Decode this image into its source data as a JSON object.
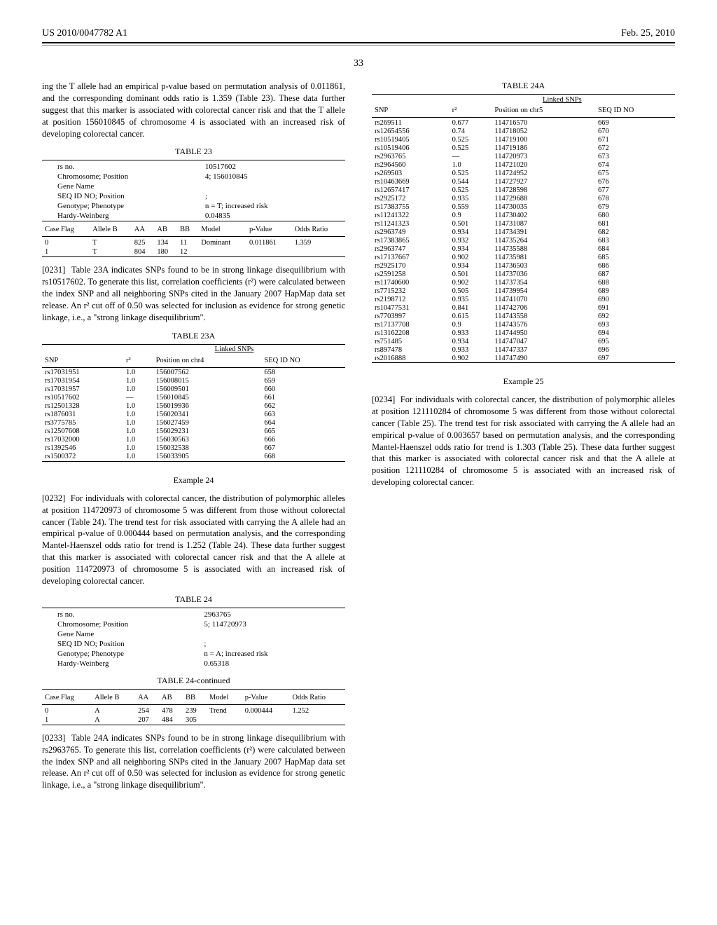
{
  "header": {
    "left": "US 2010/0047782 A1",
    "right": "Feb. 25, 2010"
  },
  "page_number": "33",
  "intro_para": "ing the T allele had an empirical p-value based on permutation analysis of 0.011861, and the corresponding dominant odds ratio is 1.359 (Table 23). These data further suggest that this marker is associated with colorectal cancer risk and that the T allele at position 156010845 of chromosome 4 is associated with an increased risk of developing colorectal cancer.",
  "table23": {
    "caption": "TABLE 23",
    "meta": {
      "labels": [
        "rs no.",
        "Chromosome; Position",
        "Gene Name",
        "SEQ ID NO; Position",
        "Genotype; Phenotype",
        "Hardy-Weinberg"
      ],
      "values": [
        "10517602",
        "4; 156010845",
        "",
        ";",
        "n = T; increased risk",
        "0.04835"
      ]
    },
    "headers": [
      "Case Flag",
      "Allele B",
      "AA",
      "AB",
      "BB",
      "Model",
      "p-Value",
      "Odds Ratio"
    ],
    "rows": [
      [
        "0",
        "T",
        "825",
        "134",
        "11",
        "Dominant",
        "0.011861",
        "1.359"
      ],
      [
        "1",
        "T",
        "804",
        "180",
        "12",
        "",
        "",
        ""
      ]
    ]
  },
  "para231": "Table 23A indicates SNPs found to be in strong linkage disequilibrium with rs10517602. To generate this list, correlation coefficients (r²) were calculated between the index SNP and all neighboring SNPs cited in the January 2007 HapMap data set release. An r² cut off of 0.50 was selected for inclusion as evidence for strong genetic linkage, i.e., a \"strong linkage disequilibrium\".",
  "table23a": {
    "caption": "TABLE 23A",
    "subcaption": "Linked SNPs",
    "headers": [
      "SNP",
      "r²",
      "Position on chr4",
      "SEQ ID NO"
    ],
    "rows": [
      [
        "rs17031951",
        "1.0",
        "156007562",
        "658"
      ],
      [
        "rs17031954",
        "1.0",
        "156008015",
        "659"
      ],
      [
        "rs17031957",
        "1.0",
        "156009501",
        "660"
      ],
      [
        "rs10517602",
        "—",
        "156010845",
        "661"
      ],
      [
        "rs12501328",
        "1.0",
        "156019936",
        "662"
      ],
      [
        "rs1876031",
        "1.0",
        "156020341",
        "663"
      ],
      [
        "rs3775785",
        "1.0",
        "156027459",
        "664"
      ],
      [
        "rs12507608",
        "1.0",
        "156029231",
        "665"
      ],
      [
        "rs17032000",
        "1.0",
        "156030563",
        "666"
      ],
      [
        "rs1392546",
        "1.0",
        "156032538",
        "667"
      ],
      [
        "rs1500372",
        "1.0",
        "156033905",
        "668"
      ]
    ]
  },
  "example24": {
    "title": "Example 24",
    "para": "For individuals with colorectal cancer, the distribution of polymorphic alleles at position 114720973 of chromosome 5 was different from those without colorectal cancer (Table 24). The trend test for risk associated with carrying the A allele had an empirical p-value of 0.000444 based on permutation analysis, and the corresponding Mantel-Haenszel odds ratio for trend is 1.252 (Table 24). These data further suggest that this marker is associated with colorectal cancer risk and that the A allele at position 114720973 of chromosome 5 is associated with an increased risk of developing colorectal cancer."
  },
  "table24": {
    "caption": "TABLE 24",
    "meta": {
      "labels": [
        "rs no.",
        "Chromosome; Position",
        "Gene Name",
        "SEQ ID NO; Position",
        "Genotype; Phenotype",
        "Hardy-Weinberg"
      ],
      "values": [
        "2963765",
        "5; 114720973",
        "",
        ";",
        "n = A; increased risk",
        "0.65318"
      ]
    }
  },
  "table24cont": {
    "caption": "TABLE 24-continued",
    "headers": [
      "Case Flag",
      "Allele B",
      "AA",
      "AB",
      "BB",
      "Model",
      "p-Value",
      "Odds Ratio"
    ],
    "rows": [
      [
        "0",
        "A",
        "254",
        "478",
        "239",
        "Trend",
        "0.000444",
        "1.252"
      ],
      [
        "1",
        "A",
        "207",
        "484",
        "305",
        "",
        "",
        ""
      ]
    ]
  },
  "para233": "Table 24A indicates SNPs found to be in strong linkage disequilibrium with rs2963765. To generate this list, correlation coefficients (r²) were calculated between the index SNP and all neighboring SNPs cited in the January 2007 HapMap data set release. An r² cut off of 0.50 was selected for inclusion as evidence for strong genetic linkage, i.e., a \"strong linkage disequilibrium\".",
  "table24a": {
    "caption": "TABLE 24A",
    "subcaption": "Linked SNPs",
    "headers": [
      "SNP",
      "r²",
      "Position on chr5",
      "SEQ ID NO"
    ],
    "rows": [
      [
        "rs269511",
        "0.677",
        "114716570",
        "669"
      ],
      [
        "rs12654556",
        "0.74",
        "114718052",
        "670"
      ],
      [
        "rs10519405",
        "0.525",
        "114719100",
        "671"
      ],
      [
        "rs10519406",
        "0.525",
        "114719186",
        "672"
      ],
      [
        "rs2963765",
        "—",
        "114720973",
        "673"
      ],
      [
        "rs2964560",
        "1.0",
        "114721020",
        "674"
      ],
      [
        "rs269503",
        "0.525",
        "114724952",
        "675"
      ],
      [
        "rs10463669",
        "0.544",
        "114727927",
        "676"
      ],
      [
        "rs12657417",
        "0.525",
        "114728598",
        "677"
      ],
      [
        "rs2925172",
        "0.935",
        "114729688",
        "678"
      ],
      [
        "rs17383755",
        "0.559",
        "114730035",
        "679"
      ],
      [
        "rs11241322",
        "0.9",
        "114730402",
        "680"
      ],
      [
        "rs11241323",
        "0.501",
        "114731087",
        "681"
      ],
      [
        "rs2963749",
        "0.934",
        "114734391",
        "682"
      ],
      [
        "rs17383865",
        "0.932",
        "114735264",
        "683"
      ],
      [
        "rs2963747",
        "0.934",
        "114735588",
        "684"
      ],
      [
        "rs17137667",
        "0.902",
        "114735981",
        "685"
      ],
      [
        "rs2925170",
        "0.934",
        "114736503",
        "686"
      ],
      [
        "rs2591258",
        "0.501",
        "114737036",
        "687"
      ],
      [
        "rs11740600",
        "0.902",
        "114737354",
        "688"
      ],
      [
        "rs7715232",
        "0.505",
        "114739954",
        "689"
      ],
      [
        "rs2198712",
        "0.935",
        "114741070",
        "690"
      ],
      [
        "rs10477531",
        "0.841",
        "114742706",
        "691"
      ],
      [
        "rs7703997",
        "0.615",
        "114743558",
        "692"
      ],
      [
        "rs17137708",
        "0.9",
        "114743576",
        "693"
      ],
      [
        "rs13162208",
        "0.933",
        "114744950",
        "694"
      ],
      [
        "rs751485",
        "0.934",
        "114747047",
        "695"
      ],
      [
        "rs897478",
        "0.933",
        "114747337",
        "696"
      ],
      [
        "rs2016888",
        "0.902",
        "114747490",
        "697"
      ]
    ]
  },
  "example25": {
    "title": "Example 25",
    "para": "For individuals with colorectal cancer, the distribution of polymorphic alleles at position 121110284 of chromosome 5 was different from those without colorectal cancer (Table 25). The trend test for risk associated with carrying the A allele had an empirical p-value of 0.003657 based on permutation analysis, and the corresponding Mantel-Haenszel odds ratio for trend is 1.303 (Table 25). These data further suggest that this marker is associated with colorectal cancer risk and that the A allele at position 121110284 of chromosome 5 is associated with an increased risk of developing colorectal cancer."
  }
}
